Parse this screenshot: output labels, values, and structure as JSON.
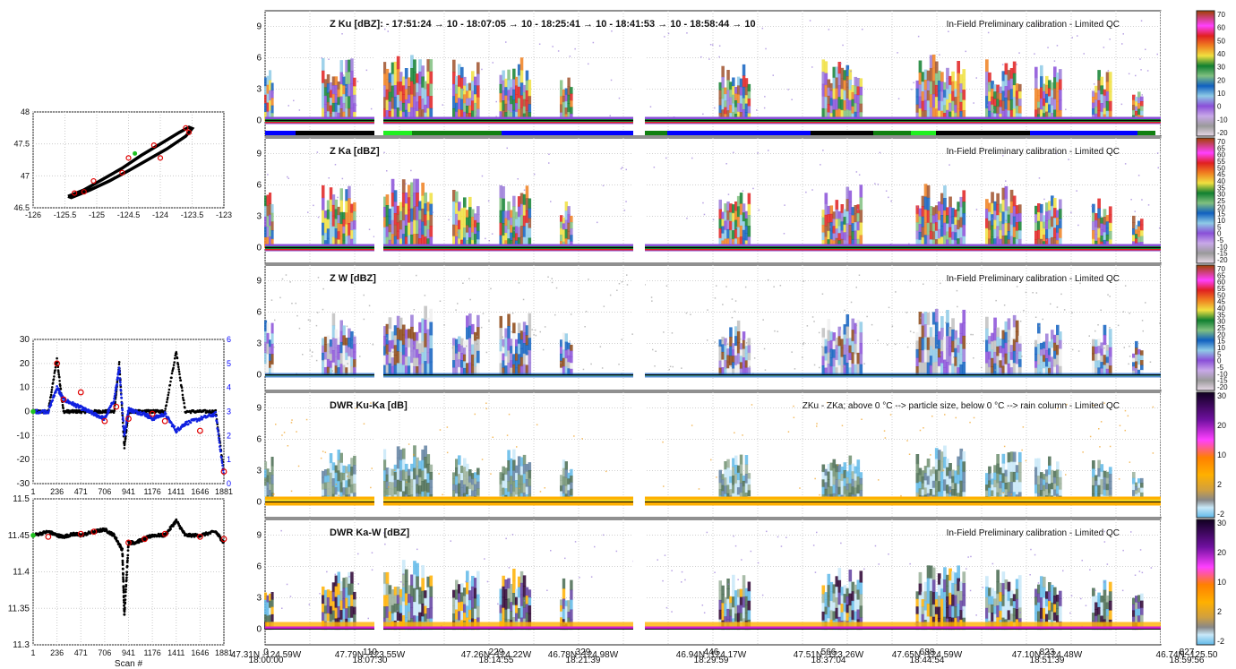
{
  "left_panels": {
    "track_map": {
      "xticks": [
        "-126",
        "-125.5",
        "-125",
        "-124.5",
        "-124",
        "-123.5",
        "-123"
      ],
      "yticks": [
        "46.5",
        "47",
        "47.5",
        "48"
      ],
      "xlim": [
        -126,
        -123
      ],
      "ylim": [
        46.5,
        48
      ]
    },
    "speed_panel": {
      "yticks_left": [
        "-30",
        "-20",
        "-10",
        "0",
        "10",
        "20",
        "30"
      ],
      "yticks_right": [
        "0",
        "1",
        "2",
        "3",
        "4",
        "5",
        "6"
      ],
      "xticks": [
        "1",
        "236",
        "471",
        "706",
        "941",
        "1176",
        "1411",
        "1646",
        "1881"
      ],
      "right_axis_color": "#0000ff"
    },
    "altitude_panel": {
      "yticks": [
        "11.3",
        "11.35",
        "11.4",
        "11.45",
        "11.5"
      ],
      "xticks": [
        "1",
        "236",
        "471",
        "706",
        "941",
        "1176",
        "1411",
        "1646",
        "1881"
      ],
      "xlabel": "Scan #"
    }
  },
  "main_panels": [
    {
      "title": "Z Ku [dBZ]:  - 17:51:24 → 10 - 18:07:05 → 10 - 18:25:41 → 10 - 18:41:53 → 10 - 18:58:44 → 10",
      "note": "In-Field Preliminary calibration - Limited QC",
      "yticks": [
        "0",
        "3",
        "6",
        "9"
      ],
      "colorbar_ticks": [
        "70",
        "60",
        "50",
        "40",
        "30",
        "20",
        "10",
        "0",
        "-10",
        "-20"
      ],
      "colorbar": "reflectivity"
    },
    {
      "title": "Z Ka [dBZ]",
      "note": "In-Field Preliminary calibration - Limited QC",
      "yticks": [
        "0",
        "3",
        "6",
        "9"
      ],
      "colorbar_ticks": [
        "70",
        "65",
        "60",
        "55",
        "50",
        "45",
        "40",
        "35",
        "30",
        "25",
        "20",
        "15",
        "10",
        "5",
        "0",
        "-5",
        "-10",
        "-15",
        "-20"
      ],
      "colorbar": "reflectivity"
    },
    {
      "title": "Z W [dBZ]",
      "note": "In-Field Preliminary calibration - Limited QC",
      "yticks": [
        "0",
        "3",
        "6",
        "9"
      ],
      "colorbar_ticks": [
        "70",
        "65",
        "60",
        "55",
        "50",
        "45",
        "40",
        "35",
        "30",
        "25",
        "20",
        "15",
        "10",
        "5",
        "0",
        "-5",
        "-10",
        "-15",
        "-20"
      ],
      "colorbar": "reflectivity"
    },
    {
      "title": "DWR Ku-Ka [dB]",
      "note": "ZKu - ZKa; above 0 °C --> particle size, below 0 °C --> rain column - Limited QC",
      "yticks": [
        "0",
        "3",
        "6",
        "9"
      ],
      "colorbar_ticks": [
        "30",
        "20",
        "10",
        "2",
        "-2"
      ],
      "colorbar": "dwr"
    },
    {
      "title": "DWR Ka-W [dBZ]",
      "note": "In-Field Preliminary calibration - Limited QC",
      "yticks": [
        "0",
        "3",
        "6",
        "9"
      ],
      "colorbar_ticks": [
        "30",
        "20",
        "10",
        "2",
        "-2"
      ],
      "colorbar": "dwr"
    }
  ],
  "bottom_axis": {
    "scan_labels": [
      "0",
      "110",
      "229",
      "329",
      "446",
      "566",
      "688",
      "823",
      "827"
    ],
    "time_labels": [
      "18:00:00",
      "18:07:30",
      "18:14:55",
      "18:21:39",
      "18:29:59",
      "18:37:04",
      "18:44:54",
      "18:51:39",
      "18:59:56"
    ],
    "coord_labels": [
      "47.31N -124.59W",
      "47.79N -123.55W",
      "47.26N -124.22W",
      "46.78N -124.98W",
      "46.94N -124.17W",
      "47.51N -123.26W",
      "47.65N -124.59W",
      "47.10N -124.48W",
      "46.74N -125.50"
    ]
  },
  "chart_data": [
    {
      "type": "line",
      "title": "",
      "series": [
        {
          "name": "",
          "x": [
            -125.45,
            -125.2,
            -124.95,
            -124.6,
            -124.3,
            -124.0,
            -123.7,
            -123.55,
            -123.5,
            -123.6,
            -123.9,
            -124.2,
            -124.5,
            -124.8,
            -125.1,
            -125.4,
            -125.45
          ],
          "y": [
            46.68,
            46.78,
            46.92,
            47.12,
            47.32,
            47.5,
            47.68,
            47.76,
            47.74,
            47.62,
            47.42,
            47.25,
            47.08,
            46.92,
            46.78,
            46.66,
            46.68
          ]
        }
      ],
      "xlim": [
        -126,
        -123
      ],
      "ylim": [
        46.5,
        48
      ]
    },
    {
      "type": "scatter",
      "title": "",
      "series": [
        {
          "name": "",
          "x": [
            1,
            150,
            236,
            300,
            400,
            500,
            600,
            706,
            800,
            850,
            900,
            941,
            1000,
            1100,
            1176,
            1300,
            1411,
            1500,
            1646,
            1800,
            1881
          ],
          "y": [
            0,
            0,
            22,
            0,
            0,
            0,
            0,
            0,
            0,
            20,
            -15,
            0,
            0,
            0,
            0,
            0,
            25,
            0,
            0,
            0,
            -25
          ]
        },
        {
          "name": "",
          "x": [
            1,
            150,
            236,
            300,
            400,
            500,
            600,
            706,
            800,
            850,
            900,
            941,
            1000,
            1100,
            1176,
            1300,
            1411,
            1500,
            1646,
            1800,
            1881
          ],
          "y": [
            3.0,
            3.0,
            4.0,
            3.5,
            3.3,
            3.1,
            2.9,
            2.7,
            3.5,
            4.8,
            2.0,
            3.1,
            3.0,
            2.9,
            2.7,
            2.9,
            2.2,
            2.5,
            2.7,
            2.9,
            0.3
          ]
        }
      ],
      "xlim": [
        1,
        1881
      ],
      "ylim": [
        -30,
        30
      ]
    },
    {
      "type": "scatter",
      "title": "",
      "series": [
        {
          "name": "",
          "x": [
            1,
            150,
            236,
            300,
            400,
            471,
            600,
            706,
            800,
            880,
            900,
            941,
            1000,
            1100,
            1176,
            1300,
            1411,
            1500,
            1646,
            1800,
            1881
          ],
          "y": [
            11.45,
            11.455,
            11.45,
            11.448,
            11.452,
            11.45,
            11.455,
            11.458,
            11.45,
            11.43,
            11.34,
            11.44,
            11.44,
            11.445,
            11.45,
            11.45,
            11.47,
            11.45,
            11.45,
            11.455,
            11.44
          ]
        }
      ],
      "xlim": [
        1,
        1881
      ],
      "ylim": [
        11.3,
        11.5
      ],
      "xlabel": "Scan #"
    },
    {
      "type": "heatmap",
      "title": "Z Ku [dBZ]:  - 17:51:24 → 10 - 18:07:05 → 10 - 18:25:41 → 10 - 18:41:53 → 10 - 18:58:44 → 10",
      "ylim": [
        -1.5,
        10.5
      ],
      "color_range": [
        -20,
        70
      ]
    },
    {
      "type": "heatmap",
      "title": "Z Ka [dBZ]",
      "ylim": [
        -1.5,
        10.5
      ],
      "color_range": [
        -20,
        70
      ]
    },
    {
      "type": "heatmap",
      "title": "Z W [dBZ]",
      "ylim": [
        -1.5,
        10.5
      ],
      "color_range": [
        -20,
        70
      ]
    },
    {
      "type": "heatmap",
      "title": "DWR Ku-Ka [dB]",
      "ylim": [
        -1.5,
        10.5
      ],
      "color_range": [
        -2,
        30
      ]
    },
    {
      "type": "heatmap",
      "title": "DWR Ka-W [dBZ]",
      "ylim": [
        -1.5,
        10.5
      ],
      "color_range": [
        -2,
        30
      ]
    }
  ]
}
